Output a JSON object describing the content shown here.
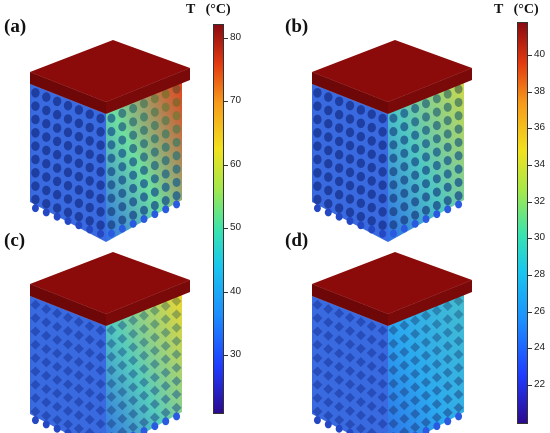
{
  "panels": [
    {
      "id": "a",
      "label": "(a)",
      "hot": 1.0
    },
    {
      "id": "b",
      "label": "(b)",
      "hot": 0.75
    },
    {
      "id": "c",
      "label": "(c)",
      "hot": 0.8
    },
    {
      "id": "d",
      "label": "(d)",
      "hot": 0.45
    }
  ],
  "colorbars": [
    {
      "title": "T   (°C)",
      "ticks": [
        "80",
        "70",
        "60",
        "50",
        "40",
        "30"
      ]
    },
    {
      "title": "T   (°C)",
      "ticks": [
        "40",
        "38",
        "36",
        "34",
        "32",
        "30",
        "28",
        "26",
        "24",
        "22"
      ]
    }
  ],
  "colors": {
    "plate_top": "#8b0a0a",
    "plate_side": "#6e0808",
    "cold": "#2a57d6",
    "warm": "#f0c020",
    "hot": "#e0401a"
  }
}
